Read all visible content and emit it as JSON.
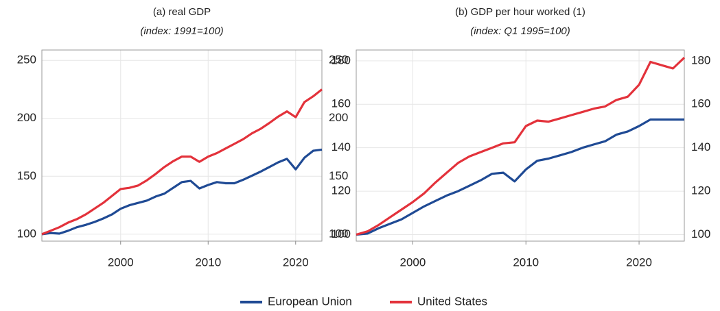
{
  "chart_data": [
    {
      "type": "line",
      "title": "(a) real GDP",
      "subtitle": "(index: 1991=100)",
      "x": [
        1991,
        1992,
        1993,
        1994,
        1995,
        1996,
        1997,
        1998,
        1999,
        2000,
        2001,
        2002,
        2003,
        2004,
        2005,
        2006,
        2007,
        2008,
        2009,
        2010,
        2011,
        2012,
        2013,
        2014,
        2015,
        2016,
        2017,
        2018,
        2019,
        2020,
        2021,
        2022,
        2023
      ],
      "series": [
        {
          "name": "European Union",
          "color": "#1f4a94",
          "values": [
            100,
            101,
            100.5,
            103,
            106,
            108,
            110.5,
            113.5,
            117,
            122,
            125,
            127,
            129,
            132.5,
            135,
            140,
            145,
            146,
            139.5,
            142.5,
            145,
            144,
            144,
            147,
            150.5,
            154,
            158,
            162,
            165,
            156,
            166,
            172,
            173
          ]
        },
        {
          "name": "United States",
          "color": "#e3323b",
          "values": [
            100,
            103,
            106,
            110,
            113,
            117,
            122,
            127,
            133,
            139,
            140,
            142,
            146.5,
            152,
            158,
            163,
            167,
            167,
            162.5,
            167,
            170,
            174,
            178,
            182,
            187,
            191,
            196,
            201.5,
            206,
            201,
            214,
            219,
            225
          ]
        }
      ],
      "xlim": [
        1991,
        2023
      ],
      "xticks": [
        2000,
        2010,
        2020
      ],
      "ylim": [
        94,
        259
      ],
      "yticks": [
        100,
        150,
        200,
        250
      ],
      "grid": true
    },
    {
      "type": "line",
      "title": "(b) GDP per hour worked (1)",
      "subtitle": "(index: Q1 1995=100)",
      "x": [
        1995,
        1996,
        1997,
        1998,
        1999,
        2000,
        2001,
        2002,
        2003,
        2004,
        2005,
        2006,
        2007,
        2008,
        2009,
        2010,
        2011,
        2012,
        2013,
        2014,
        2015,
        2016,
        2017,
        2018,
        2019,
        2020,
        2021,
        2022,
        2023,
        2024
      ],
      "series": [
        {
          "name": "European Union",
          "color": "#1f4a94",
          "values": [
            100,
            100.5,
            103,
            105,
            107,
            110,
            113,
            115.5,
            118,
            120,
            122.5,
            125,
            128,
            128.5,
            124.5,
            130,
            134,
            135,
            136.5,
            138,
            140,
            141.5,
            143,
            146,
            147.5,
            150,
            153,
            153,
            153,
            153
          ]
        },
        {
          "name": "United States",
          "color": "#e3323b",
          "values": [
            100,
            101.5,
            104.5,
            108,
            111.5,
            115,
            119,
            124,
            128.5,
            133,
            136,
            138,
            140,
            142,
            142.5,
            150,
            152.5,
            152,
            153.5,
            155,
            156.5,
            158,
            159,
            162,
            163.5,
            169,
            179.5,
            178,
            176.5,
            181.5
          ]
        }
      ],
      "xlim": [
        1995,
        2024
      ],
      "xticks": [
        2000,
        2010,
        2020
      ],
      "ylim": [
        97,
        185
      ],
      "yticks": [
        100,
        120,
        140,
        160,
        180
      ],
      "grid": true
    }
  ]
}
